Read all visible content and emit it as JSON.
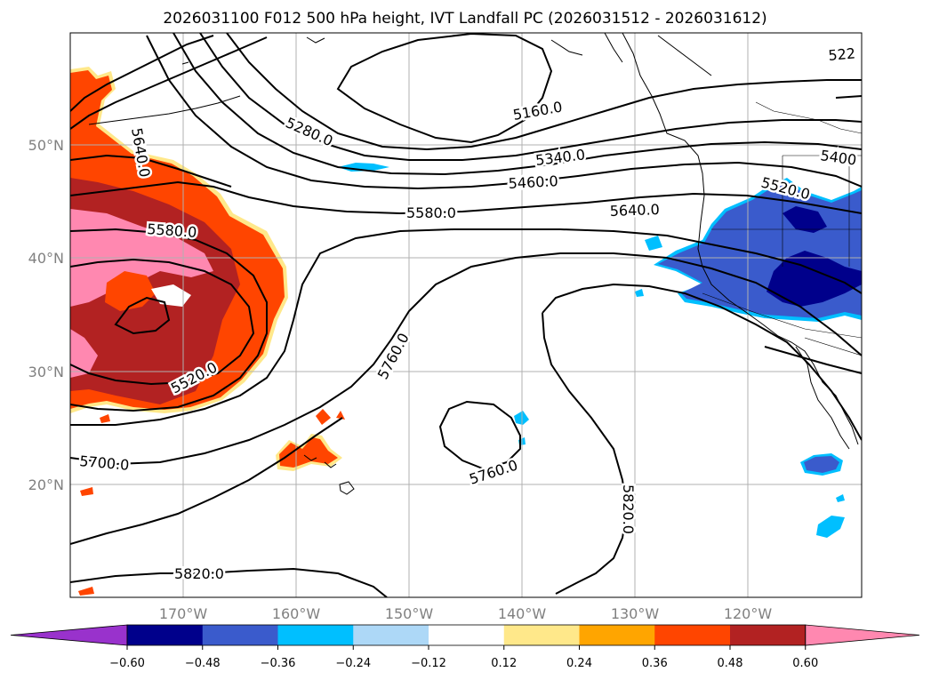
{
  "title": "2026031100 F012 500 hPa height, IVT Landfall PC (2026031512 - 2026031612)",
  "lat_labels": [
    "50°N",
    "40°N",
    "30°N",
    "20°N"
  ],
  "lon_labels": [
    "170°W",
    "160°W",
    "150°W",
    "140°W",
    "130°W",
    "120°W"
  ],
  "contour_labels": [
    "5640.0",
    "5280.0",
    "5160.0",
    "5340.0",
    "5460.0",
    "5580.0",
    "5640.0",
    "5400",
    "5520.0",
    "522",
    "5580.0",
    "5520.0",
    "5760.0",
    "5760.0",
    "5700.0",
    "5820.0",
    "5820.0"
  ],
  "colorbar": {
    "ticks": [
      "−0.60",
      "−0.48",
      "−0.36",
      "−0.24",
      "−0.12",
      "0.12",
      "0.24",
      "0.36",
      "0.48",
      "0.60"
    ],
    "colors": [
      "#9932cc",
      "#00008b",
      "#3a5bcc",
      "#00bfff",
      "#add8f7",
      "#ffffff",
      "#ffe88a",
      "#ffa500",
      "#ff4500",
      "#b22222",
      "#ff88b0"
    ]
  },
  "colors": {
    "positive_main": "#ff4500",
    "positive_strong": "#b22222",
    "positive_max": "#ff88b0",
    "negative_main": "#3a5bcc",
    "negative_strong": "#00008b",
    "negative_light": "#00bfff"
  }
}
